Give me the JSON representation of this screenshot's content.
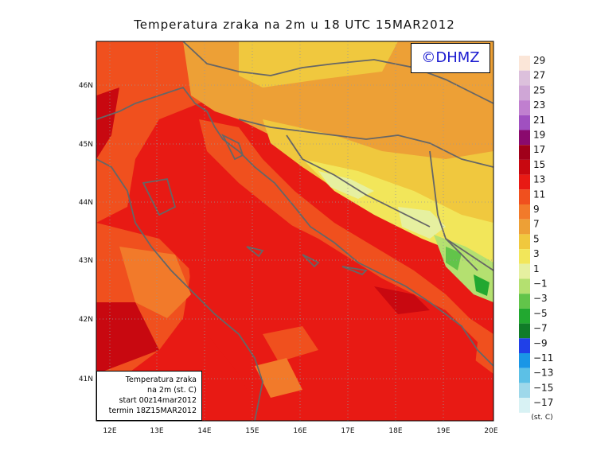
{
  "title": "Temperatura zraka na 2m u 18 UTC 15MAR2012",
  "logo": "©DHMZ",
  "info_lines": [
    "Temperatura zraka",
    "na 2m (st. C)",
    "start 00z14mar2012",
    "termin 18Z15MAR2012"
  ],
  "lat_ticks": [
    "46N",
    "45N",
    "44N",
    "43N",
    "42N",
    "41N"
  ],
  "lon_ticks": [
    "12E",
    "13E",
    "14E",
    "15E",
    "16E",
    "17E",
    "18E",
    "19E",
    "20E"
  ],
  "legend": {
    "unit": "(st. C)",
    "labels": [
      "29",
      "27",
      "25",
      "23",
      "21",
      "19",
      "17",
      "15",
      "13",
      "11",
      "9",
      "7",
      "5",
      "3",
      "1",
      "−1",
      "−3",
      "−5",
      "−7",
      "−9",
      "−11",
      "−13",
      "−15",
      "−17"
    ],
    "colors": [
      "#fbe6d8",
      "#dcc0dc",
      "#cfa6d6",
      "#c07fcf",
      "#a050c0",
      "#8a0a6e",
      "#a0001a",
      "#c80810",
      "#e81a14",
      "#f0501e",
      "#f27a2a",
      "#eda036",
      "#f0c83e",
      "#f2e65a",
      "#e6f0a0",
      "#b4e070",
      "#62c44a",
      "#22a830",
      "#107c28",
      "#2040e8",
      "#1a96e6",
      "#5cc0e6",
      "#9ed8ea",
      "#d8f2f4"
    ]
  }
}
